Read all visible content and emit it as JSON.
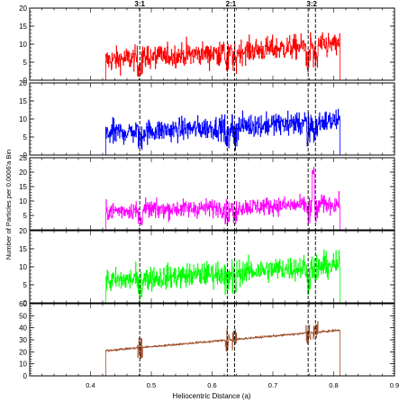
{
  "chart_data": {
    "type": "line",
    "ylabel": "Number of Particles per 0.0006'a Bin",
    "xlabel": "Heliocentric Distance (a)",
    "xlim": [
      0.3,
      0.9
    ],
    "x_ticks": [
      0.4,
      0.5,
      0.6,
      0.7,
      0.8,
      0.9
    ],
    "x_tick_labels": [
      "0.4",
      "0.5",
      "0.6",
      "0.7",
      "0.8",
      "0.9"
    ],
    "x_range_data": [
      0.425,
      0.81
    ],
    "grid": false,
    "resonances": [
      {
        "label": "3:1",
        "x": [
          0.481
        ]
      },
      {
        "label": "2:1",
        "x": [
          0.625,
          0.637
        ]
      },
      {
        "label": "3:2",
        "x": [
          0.758,
          0.77
        ]
      }
    ],
    "panels": [
      {
        "color": "#ff0000",
        "ylim": [
          0,
          20
        ],
        "yticks": [
          0,
          5,
          10,
          15,
          20
        ],
        "mean_start": 5.5,
        "mean_end": 10.0,
        "spread": 2.4,
        "spike": null
      },
      {
        "color": "#0000ff",
        "ylim": [
          0,
          20
        ],
        "yticks": [
          0,
          5,
          10,
          15,
          20
        ],
        "mean_start": 6.0,
        "mean_end": 9.5,
        "spread": 2.3,
        "spike": null
      },
      {
        "color": "#ff00ff",
        "ylim": [
          0,
          25
        ],
        "yticks": [
          5,
          10,
          15,
          20,
          25
        ],
        "mean_start": 6.5,
        "mean_end": 9.0,
        "spread": 2.2,
        "spike": {
          "x": 0.766,
          "value": 22
        }
      },
      {
        "color": "#00ff00",
        "ylim": [
          0,
          20
        ],
        "yticks": [
          0,
          5,
          10,
          15,
          20
        ],
        "mean_start": 6.0,
        "mean_end": 10.5,
        "spread": 2.4,
        "spike": null
      },
      {
        "color": "#a0522d",
        "ylim": [
          0,
          60
        ],
        "yticks": [
          0,
          10,
          20,
          30,
          40,
          50,
          60
        ],
        "mean_start": 21.0,
        "mean_end": 38.0,
        "spread": 0.6,
        "spike": null
      }
    ]
  }
}
